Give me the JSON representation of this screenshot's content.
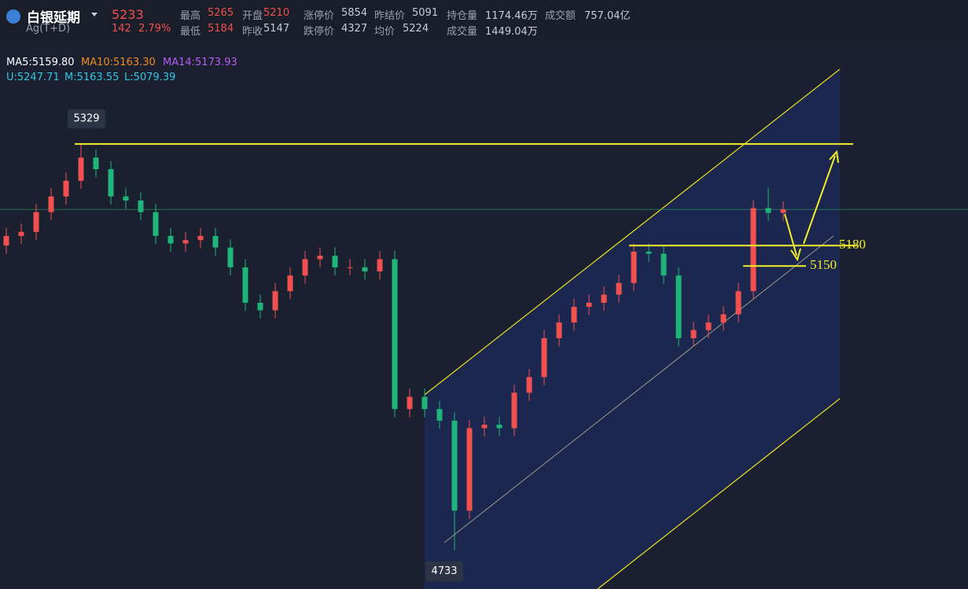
{
  "header": {
    "name": "白银延期",
    "code": "Ag(T+D)",
    "price": "5233",
    "change": "142",
    "change_pct": "2.79%",
    "row1": [
      [
        "最高",
        "5265"
      ],
      [
        "开盘",
        "5210"
      ],
      [
        "涨停价",
        "5854"
      ],
      [
        "昨结价",
        "5091"
      ],
      [
        "持仓量",
        "1174.46万"
      ],
      [
        "成交额",
        "757.04亿"
      ]
    ],
    "row2": [
      [
        "最低",
        "5184"
      ],
      [
        "昨收",
        "5147"
      ],
      [
        "跌停价",
        "4327"
      ],
      [
        "均价",
        "5224"
      ],
      [
        "成交量",
        "1449.04万"
      ]
    ]
  },
  "indicators": {
    "ma": [
      "MA5:5159.80",
      "MA10:5163.30",
      "MA14:5173.93"
    ],
    "boll": [
      "U:5247.71",
      "M:5163.55",
      "L:5079.39"
    ]
  },
  "chart_data": {
    "type": "candlestick",
    "up_color": "#f0504f",
    "down_color": "#1fb57a",
    "ylim": [
      4676,
      5471
    ],
    "open": [
      5180,
      5194,
      5200,
      5229,
      5252,
      5275,
      5309,
      5292,
      5252,
      5246,
      5229,
      5194,
      5183,
      5188,
      5194,
      5177,
      5148,
      5096,
      5085,
      5113,
      5136,
      5160,
      5165,
      5148,
      5148,
      5142,
      5160,
      4940,
      4958,
      4940,
      4923,
      4791,
      4912,
      4917,
      4912,
      4964,
      4987,
      5044,
      5067,
      5090,
      5096,
      5108,
      5125,
      5171,
      5168,
      5136,
      5044,
      5056,
      5067,
      5079,
      5113,
      5235,
      5228
    ],
    "high": [
      5206,
      5212,
      5241,
      5264,
      5287,
      5329,
      5321,
      5304,
      5264,
      5258,
      5241,
      5206,
      5200,
      5206,
      5206,
      5189,
      5160,
      5108,
      5125,
      5148,
      5172,
      5177,
      5177,
      5160,
      5160,
      5172,
      5172,
      4970,
      4970,
      4952,
      4935,
      4924,
      4929,
      4929,
      4976,
      4999,
      5056,
      5079,
      5102,
      5108,
      5120,
      5137,
      5183,
      5183,
      5180,
      5148,
      5068,
      5079,
      5091,
      5125,
      5247,
      5265,
      5245
    ],
    "low": [
      5168,
      5182,
      5188,
      5217,
      5240,
      5263,
      5280,
      5240,
      5234,
      5217,
      5182,
      5171,
      5171,
      5176,
      5165,
      5136,
      5084,
      5073,
      5073,
      5101,
      5124,
      5148,
      5136,
      5136,
      5130,
      5130,
      4928,
      4928,
      4928,
      4911,
      4733,
      4779,
      4900,
      4900,
      4900,
      4952,
      4975,
      5032,
      5055,
      5078,
      5084,
      5096,
      5113,
      5156,
      5124,
      5032,
      5032,
      5044,
      5055,
      5067,
      5101,
      5216,
      5216
    ],
    "close": [
      5194,
      5200,
      5229,
      5252,
      5275,
      5309,
      5292,
      5252,
      5246,
      5229,
      5194,
      5183,
      5188,
      5194,
      5177,
      5148,
      5096,
      5085,
      5113,
      5136,
      5160,
      5165,
      5148,
      5148,
      5142,
      5160,
      4940,
      4958,
      4940,
      4923,
      4791,
      4912,
      4917,
      4912,
      4964,
      4987,
      5044,
      5067,
      5090,
      5096,
      5108,
      5125,
      5171,
      5168,
      5136,
      5044,
      5056,
      5067,
      5079,
      5113,
      5235,
      5228,
      5233
    ],
    "peak": 5329,
    "trough": 4733,
    "levels": [
      5180,
      5150
    ]
  }
}
